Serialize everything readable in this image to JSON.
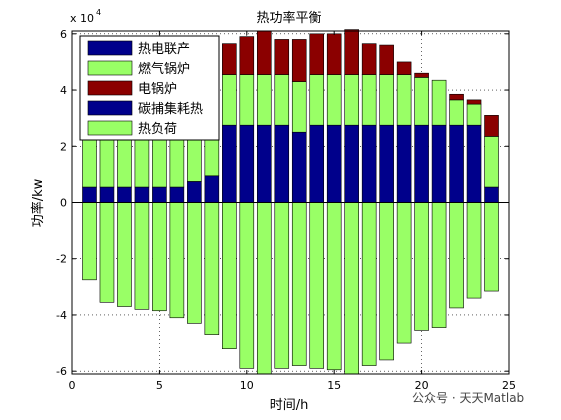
{
  "chart_data": {
    "type": "bar",
    "stacked": true,
    "title": "热功率平衡",
    "xlabel": "时间/h",
    "ylabel": "功率/kw",
    "exponent_label": "x 10",
    "exponent_power": "4",
    "xlim": [
      0,
      25
    ],
    "ylim": [
      -61000,
      61000
    ],
    "x_ticks": [
      0,
      5,
      10,
      15,
      20,
      25
    ],
    "y_ticks": [
      -60000,
      -40000,
      -20000,
      0,
      20000,
      40000,
      60000
    ],
    "y_tick_labels": [
      "-6",
      "-4",
      "-2",
      "0",
      "2",
      "4",
      "6"
    ],
    "grid": "dotted",
    "legend_position": "top-left",
    "x": [
      1,
      2,
      3,
      4,
      5,
      6,
      7,
      8,
      9,
      10,
      11,
      12,
      13,
      14,
      15,
      16,
      17,
      18,
      19,
      20,
      21,
      22,
      23,
      24
    ],
    "series": [
      {
        "name": "热电联产",
        "color": "#00008b",
        "values": [
          5500,
          5500,
          5500,
          5500,
          5500,
          5500,
          7500,
          9500,
          27500,
          27500,
          27500,
          27500,
          25000,
          27500,
          27500,
          27500,
          27500,
          27500,
          27500,
          27500,
          27500,
          27500,
          27500,
          5500
        ]
      },
      {
        "name": "燃气锅炉",
        "color": "#99ff66",
        "values": [
          40000,
          40000,
          40000,
          40000,
          40000,
          40000,
          38000,
          36000,
          18000,
          18000,
          18000,
          18000,
          18000,
          18000,
          18000,
          18000,
          18000,
          18000,
          18000,
          17000,
          16000,
          9000,
          7500,
          18000
        ]
      },
      {
        "name": "电锅炉",
        "color": "#8b0000",
        "values": [
          0,
          0,
          0,
          0,
          0,
          0,
          0,
          0,
          11000,
          13500,
          15500,
          12500,
          15000,
          14500,
          14500,
          16000,
          11000,
          10500,
          4500,
          1500,
          0,
          2000,
          1500,
          7500
        ]
      },
      {
        "name": "碳捕集耗热",
        "color": "#00008b",
        "values": [
          0,
          0,
          0,
          0,
          0,
          0,
          0,
          0,
          0,
          0,
          0,
          0,
          0,
          0,
          0,
          0,
          0,
          0,
          0,
          0,
          0,
          0,
          0,
          0
        ]
      },
      {
        "name": "热负荷",
        "color": "#99ff66",
        "values": [
          -27500,
          -35500,
          -37000,
          -38000,
          -38500,
          -41000,
          -43000,
          -47000,
          -52000,
          -59000,
          -61000,
          -59000,
          -58000,
          -59000,
          -59500,
          -61000,
          -58000,
          -56000,
          -50000,
          -45500,
          -44500,
          -37500,
          -34000,
          -31500
        ]
      }
    ]
  },
  "watermark": "公众号 · 天天Matlab"
}
